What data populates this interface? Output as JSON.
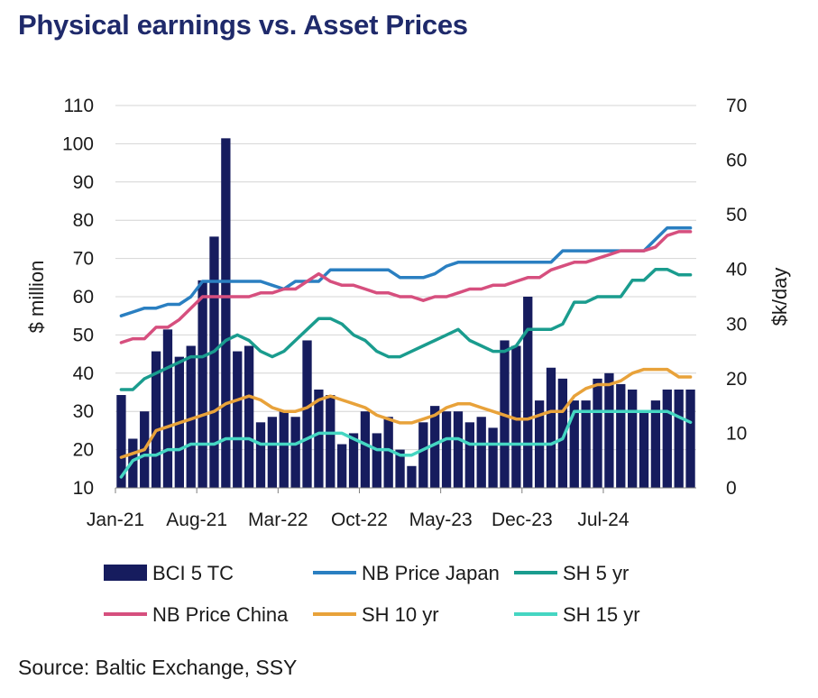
{
  "title": "Physical earnings vs. Asset Prices",
  "source": "Source: Baltic Exchange, SSY",
  "chart_data": {
    "type": "bar+line",
    "x_tick_labels": [
      "Jan-21",
      "Aug-21",
      "Mar-22",
      "Oct-22",
      "May-23",
      "Dec-23",
      "Jul-24"
    ],
    "ylabel_left": "$ million",
    "ylabel_right": "$k/day",
    "ylim_left": [
      10,
      110
    ],
    "yticks_left": [
      10,
      20,
      30,
      40,
      50,
      60,
      70,
      80,
      90,
      100,
      110
    ],
    "ylim_right": [
      0,
      70
    ],
    "yticks_right": [
      0,
      10,
      20,
      30,
      40,
      50,
      60,
      70
    ],
    "gridlines": true,
    "legend_position": "bottom",
    "bars": {
      "name": "BCI 5 TC",
      "axis": "right",
      "color": "#161c5e",
      "values": [
        17,
        9,
        14,
        25,
        29,
        24,
        26,
        38,
        46,
        64,
        25,
        26,
        12,
        13,
        14,
        13,
        27,
        18,
        17,
        8,
        10,
        14,
        10,
        13,
        7,
        4,
        12,
        15,
        14,
        14,
        12,
        13,
        11,
        27,
        26,
        35,
        16,
        22,
        20,
        16,
        16,
        20,
        21,
        19,
        18,
        14,
        16,
        18,
        18,
        18
      ]
    },
    "lines": [
      {
        "name": "NB Price Japan",
        "axis": "left",
        "color": "#2a7fc1",
        "values": [
          55,
          56,
          57,
          57,
          58,
          58,
          60,
          64,
          64,
          64,
          64,
          64,
          64,
          63,
          62,
          64,
          64,
          64,
          67,
          67,
          67,
          67,
          67,
          67,
          65,
          65,
          65,
          66,
          68,
          69,
          69,
          69,
          69,
          69,
          69,
          69,
          69,
          69,
          72,
          72,
          72,
          72,
          72,
          72,
          72,
          72,
          75,
          78,
          78,
          78
        ]
      },
      {
        "name": "NB Price China",
        "axis": "left",
        "color": "#d64f7e",
        "values": [
          48,
          49,
          49,
          52,
          52,
          54,
          57,
          60,
          60,
          60,
          60,
          60,
          61,
          61,
          62,
          62,
          64,
          66,
          64,
          63,
          63,
          62,
          61,
          61,
          60,
          60,
          59,
          60,
          60,
          61,
          62,
          62,
          63,
          63,
          64,
          65,
          65,
          67,
          68,
          69,
          69,
          70,
          71,
          72,
          72,
          72,
          73,
          76,
          77,
          77
        ]
      },
      {
        "name": "SH 5 yr",
        "axis": "right",
        "color": "#1a9c8e",
        "values": [
          18,
          18,
          20,
          21,
          22,
          23,
          24,
          24,
          25,
          27,
          28,
          27,
          25,
          24,
          25,
          27,
          29,
          31,
          31,
          30,
          28,
          27,
          25,
          24,
          24,
          25,
          26,
          27,
          28,
          29,
          27,
          26,
          25,
          25,
          26,
          29,
          29,
          29,
          30,
          34,
          34,
          35,
          35,
          35,
          38,
          38,
          40,
          40,
          39,
          39
        ]
      },
      {
        "name": "SH 10 yr",
        "axis": "left",
        "color": "#e8a23a",
        "values": [
          18,
          19,
          20,
          25,
          26,
          27,
          28,
          29,
          30,
          32,
          33,
          34,
          33,
          31,
          30,
          30,
          31,
          33,
          34,
          33,
          32,
          31,
          29,
          28,
          27,
          27,
          28,
          29,
          31,
          32,
          32,
          31,
          30,
          29,
          28,
          28,
          29,
          30,
          30,
          34,
          36,
          37,
          37,
          38,
          40,
          41,
          41,
          41,
          39,
          39
        ]
      },
      {
        "name": "SH 15 yr",
        "axis": "right",
        "color": "#45d6c2",
        "values": [
          2,
          5,
          6,
          6,
          7,
          7,
          8,
          8,
          8,
          9,
          9,
          9,
          8,
          8,
          8,
          8,
          9,
          10,
          10,
          10,
          9,
          8,
          7,
          7,
          6,
          6,
          7,
          8,
          9,
          9,
          8,
          8,
          8,
          8,
          8,
          8,
          8,
          8,
          9,
          14,
          14,
          14,
          14,
          14,
          14,
          14,
          14,
          14,
          13,
          12
        ]
      }
    ]
  }
}
